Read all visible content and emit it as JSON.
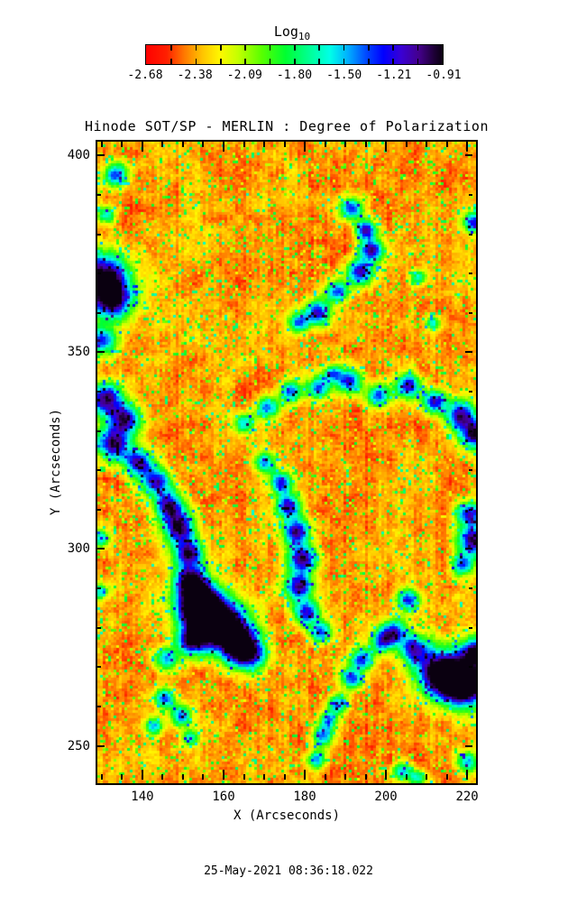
{
  "figure": {
    "title": "Hinode SOT/SP - MERLIN : Degree of Polarization",
    "timestamp": "25-May-2021 08:36:18.022"
  },
  "colorbar_header": {
    "title_main": "Log",
    "title_sub": "10"
  },
  "chart_data": {
    "type": "heatmap",
    "title": "Hinode SOT/SP - MERLIN : Degree of Polarization",
    "xlabel": "X (Arcseconds)",
    "ylabel": "Y (Arcseconds)",
    "xlim": [
      128.9,
      222.2
    ],
    "ylim": [
      240.5,
      403.5
    ],
    "x_major_ticks": [
      140,
      160,
      180,
      200,
      220
    ],
    "x_minor_step": 5,
    "y_major_ticks": [
      250,
      300,
      350,
      400
    ],
    "y_minor_step": 10,
    "grid": false,
    "value_quantity": "Log10 degree of polarization",
    "value_range": [
      -2.68,
      -0.91
    ],
    "timestamp": "25-May-2021 08:36:18.022",
    "colorbar": {
      "title": "Log10",
      "tick_labels": [
        "-2.68",
        "-2.38",
        "-2.09",
        "-1.80",
        "-1.50",
        "-1.21",
        "-0.91"
      ],
      "segments": 12,
      "gradient_stops": [
        [
          0.0,
          "#ff0000"
        ],
        [
          0.07,
          "#ff2000"
        ],
        [
          0.13,
          "#ff7a00"
        ],
        [
          0.19,
          "#ffc400"
        ],
        [
          0.25,
          "#fff800"
        ],
        [
          0.31,
          "#c4ff00"
        ],
        [
          0.39,
          "#58ff00"
        ],
        [
          0.47,
          "#00ff30"
        ],
        [
          0.55,
          "#00ff94"
        ],
        [
          0.62,
          "#00ffe8"
        ],
        [
          0.68,
          "#00b0ff"
        ],
        [
          0.74,
          "#004cff"
        ],
        [
          0.8,
          "#0000ff"
        ],
        [
          0.86,
          "#3a00d4"
        ],
        [
          0.92,
          "#44008c"
        ],
        [
          0.97,
          "#1e0038"
        ],
        [
          1.0,
          "#0a0010"
        ]
      ]
    },
    "background_texture": {
      "description": "granular red-orange quiet-sun field (log10 p near -2.5) with scattered yellow-green speckles",
      "base_color": "#f23800",
      "speckle_color": "#7dff00"
    },
    "network_features": {
      "description": "irregular blue/dark magnetic network patches (higher polarization) as gaussian blobs [x_arcsec, y_arcsec, radius_arcsec, weight]",
      "blobs": [
        [
          133.5,
          395,
          2.2,
          0.6
        ],
        [
          131,
          385,
          1.6,
          0.45
        ],
        [
          130.5,
          369,
          4.5,
          0.85
        ],
        [
          133,
          363,
          3.5,
          0.7
        ],
        [
          130,
          353,
          2.5,
          0.65
        ],
        [
          191.5,
          386.5,
          2,
          0.7
        ],
        [
          195,
          381,
          1.8,
          0.75
        ],
        [
          196.5,
          376,
          2,
          0.8
        ],
        [
          193.5,
          370.5,
          2.2,
          0.75
        ],
        [
          188,
          365.5,
          2,
          0.6
        ],
        [
          183,
          360,
          2.2,
          0.65
        ],
        [
          178.5,
          357.5,
          1.8,
          0.55
        ],
        [
          221.5,
          383,
          1.8,
          0.65
        ],
        [
          208,
          369,
          1.4,
          0.5
        ],
        [
          211.5,
          357.5,
          1.3,
          0.45
        ],
        [
          165,
          332,
          1.8,
          0.55
        ],
        [
          171,
          336,
          2,
          0.6
        ],
        [
          176.5,
          340,
          1.8,
          0.55
        ],
        [
          183.5,
          341,
          2,
          0.6
        ],
        [
          191,
          342.5,
          2.2,
          0.7
        ],
        [
          198,
          339,
          2,
          0.6
        ],
        [
          205.5,
          341.5,
          2.2,
          0.7
        ],
        [
          212,
          337.5,
          2,
          0.65
        ],
        [
          218.5,
          334,
          2.5,
          0.75
        ],
        [
          222,
          329,
          2.5,
          0.8
        ],
        [
          131,
          338,
          3,
          0.8
        ],
        [
          136,
          333,
          2.5,
          0.7
        ],
        [
          133,
          327,
          3,
          0.8
        ],
        [
          139,
          322,
          2.5,
          0.75
        ],
        [
          143.5,
          317,
          2.5,
          0.7
        ],
        [
          146.5,
          311,
          2.5,
          0.75
        ],
        [
          149,
          305.5,
          2.8,
          0.8
        ],
        [
          151.5,
          299,
          2.5,
          0.75
        ],
        [
          152,
          292,
          2.8,
          0.85
        ],
        [
          153.5,
          286,
          3.5,
          0.9
        ],
        [
          157,
          282.5,
          4.5,
          0.95
        ],
        [
          162,
          278,
          4,
          0.9
        ],
        [
          166,
          273.5,
          3,
          0.8
        ],
        [
          152,
          276.5,
          2.5,
          0.7
        ],
        [
          146,
          272,
          2,
          0.55
        ],
        [
          130,
          302.5,
          1.5,
          0.5
        ],
        [
          129.5,
          289,
          1.5,
          0.45
        ],
        [
          170,
          322,
          1.8,
          0.55
        ],
        [
          174,
          317,
          2,
          0.65
        ],
        [
          176,
          311,
          2.2,
          0.7
        ],
        [
          178,
          304.5,
          2.3,
          0.75
        ],
        [
          179.5,
          297.5,
          2.4,
          0.8
        ],
        [
          178.5,
          290.5,
          2.3,
          0.75
        ],
        [
          180.5,
          284,
          2.2,
          0.7
        ],
        [
          184,
          279,
          2,
          0.65
        ],
        [
          205.5,
          287,
          2,
          0.6
        ],
        [
          202,
          279,
          2.2,
          0.65
        ],
        [
          207,
          274.5,
          2.5,
          0.7
        ],
        [
          213.5,
          268.5,
          4,
          1.0
        ],
        [
          219.5,
          265.5,
          4,
          1.05
        ],
        [
          222,
          274,
          2.5,
          0.75
        ],
        [
          199,
          276.5,
          2,
          0.6
        ],
        [
          194,
          272,
          2,
          0.6
        ],
        [
          191.5,
          267,
          1.8,
          0.6
        ],
        [
          188,
          260.5,
          1.8,
          0.55
        ],
        [
          186,
          256.5,
          1.5,
          0.5
        ],
        [
          184.5,
          252.5,
          1.8,
          0.6
        ],
        [
          183,
          246.5,
          1.6,
          0.55
        ],
        [
          145.5,
          262,
          1.8,
          0.6
        ],
        [
          149.5,
          257.5,
          1.8,
          0.6
        ],
        [
          143,
          255,
          1.6,
          0.5
        ],
        [
          152,
          252,
          1.4,
          0.45
        ],
        [
          220.5,
          309,
          2.2,
          0.7
        ],
        [
          221.5,
          302,
          2.5,
          0.8
        ],
        [
          219,
          296,
          2,
          0.65
        ],
        [
          220,
          246,
          1.8,
          0.55
        ],
        [
          204,
          243.5,
          1.6,
          0.5
        ],
        [
          208,
          242,
          1.4,
          0.45
        ],
        [
          187,
          344.5,
          1.5,
          0.5
        ]
      ]
    }
  },
  "colors": {
    "frame": "#000000",
    "text": "#000000",
    "background": "#ffffff"
  }
}
